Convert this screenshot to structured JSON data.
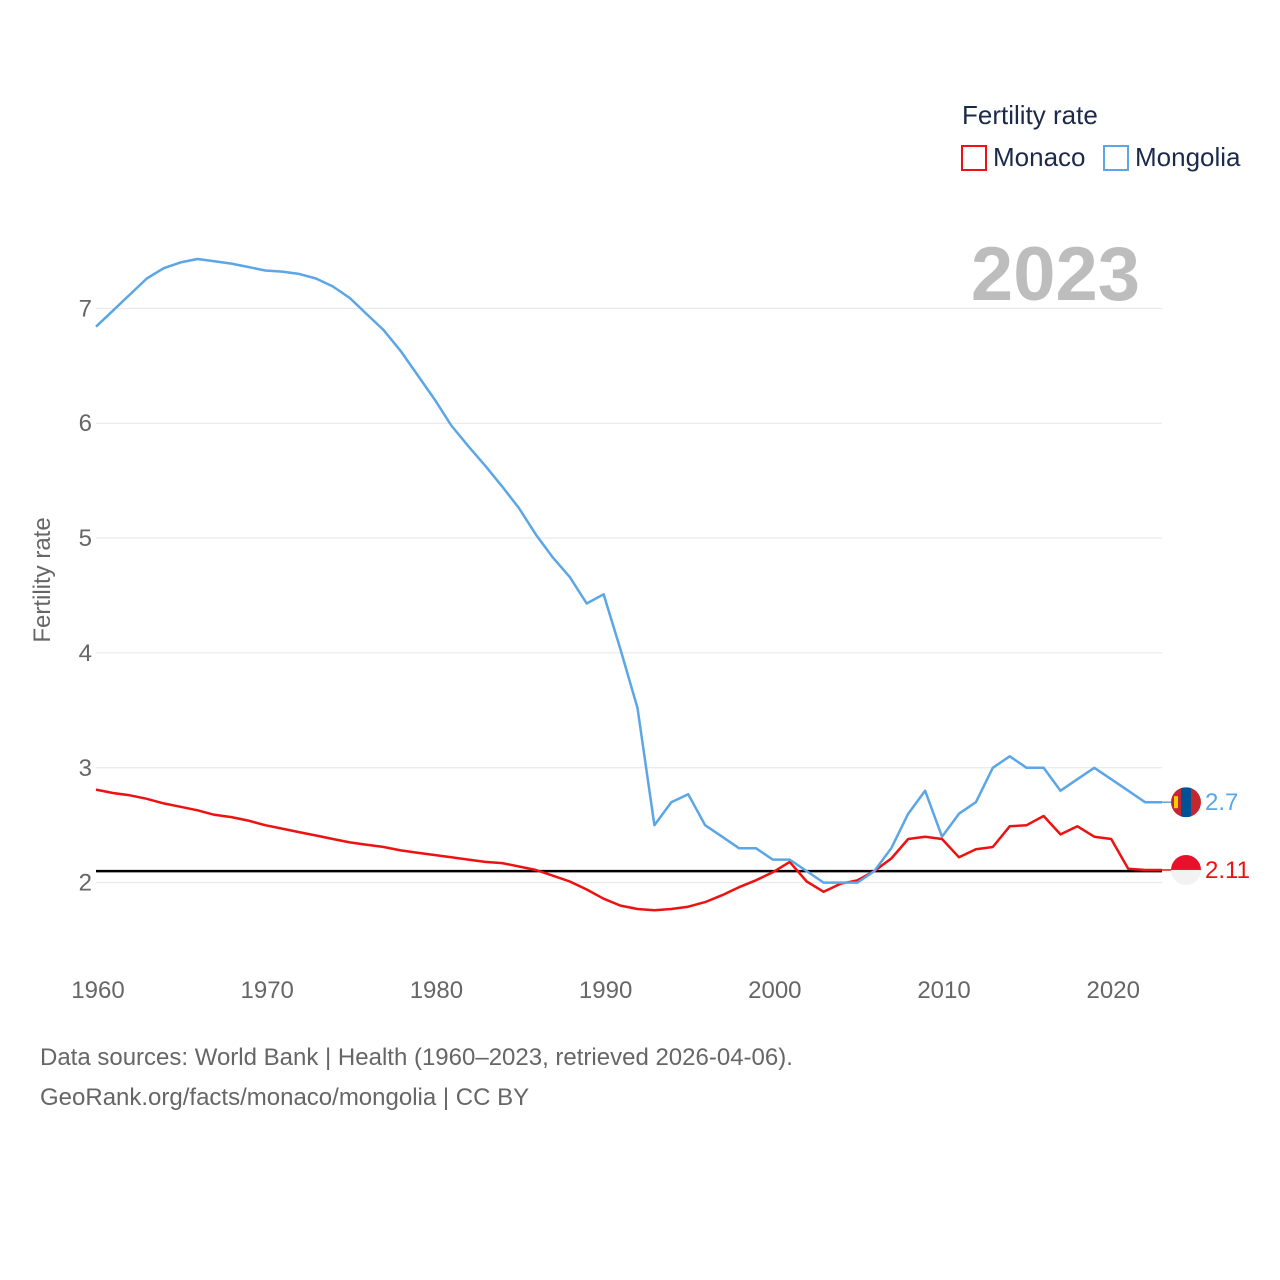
{
  "chart_data": {
    "type": "line",
    "title": "",
    "legend_title": "Fertility rate",
    "legend_position": "top-right",
    "year_display": "2023",
    "xlabel": "",
    "ylabel": "Fertility rate",
    "xlim": [
      1960,
      2023
    ],
    "ylim": [
      1.3,
      7.9
    ],
    "x_ticks": [
      1960,
      1970,
      1980,
      1990,
      2000,
      2010,
      2020
    ],
    "x_tick_labels": [
      "1960",
      "1970",
      "1980",
      "1990",
      "2000",
      "2010",
      "2020"
    ],
    "y_ticks": [
      2,
      3,
      4,
      5,
      6,
      7
    ],
    "y_tick_labels": [
      "2",
      "3",
      "4",
      "5",
      "6",
      "7"
    ],
    "reference_line": 2.1,
    "x": [
      1960,
      1961,
      1962,
      1963,
      1964,
      1965,
      1966,
      1967,
      1968,
      1969,
      1970,
      1971,
      1972,
      1973,
      1974,
      1975,
      1976,
      1977,
      1978,
      1979,
      1980,
      1981,
      1982,
      1983,
      1984,
      1985,
      1986,
      1987,
      1988,
      1989,
      1990,
      1991,
      1992,
      1993,
      1994,
      1995,
      1996,
      1997,
      1998,
      1999,
      2000,
      2001,
      2002,
      2003,
      2004,
      2005,
      2006,
      2007,
      2008,
      2009,
      2010,
      2011,
      2012,
      2013,
      2014,
      2015,
      2016,
      2017,
      2018,
      2019,
      2020,
      2021,
      2022,
      2023
    ],
    "series": [
      {
        "name": "Monaco",
        "color": "#ee1111",
        "end_label": "2.11",
        "values": [
          2.81,
          2.78,
          2.76,
          2.73,
          2.69,
          2.66,
          2.63,
          2.59,
          2.57,
          2.54,
          2.5,
          2.47,
          2.44,
          2.41,
          2.38,
          2.35,
          2.33,
          2.31,
          2.28,
          2.26,
          2.24,
          2.22,
          2.2,
          2.18,
          2.17,
          2.14,
          2.11,
          2.06,
          2.01,
          1.94,
          1.86,
          1.8,
          1.77,
          1.76,
          1.77,
          1.79,
          1.83,
          1.89,
          1.96,
          2.02,
          2.09,
          2.18,
          2.01,
          1.92,
          1.99,
          2.02,
          2.1,
          2.21,
          2.38,
          2.4,
          2.38,
          2.22,
          2.29,
          2.31,
          2.49,
          2.5,
          2.58,
          2.42,
          2.49,
          2.4,
          2.38,
          2.12,
          2.11,
          2.11
        ]
      },
      {
        "name": "Mongolia",
        "color": "#5ba6e6",
        "end_label": "2.7",
        "values": [
          6.84,
          6.98,
          7.12,
          7.26,
          7.35,
          7.4,
          7.43,
          7.41,
          7.39,
          7.36,
          7.33,
          7.32,
          7.3,
          7.26,
          7.19,
          7.09,
          6.95,
          6.81,
          6.63,
          6.42,
          6.21,
          5.98,
          5.8,
          5.63,
          5.45,
          5.26,
          5.03,
          4.83,
          4.66,
          4.43,
          4.51,
          4.03,
          3.52,
          2.5,
          2.7,
          2.77,
          2.5,
          2.4,
          2.3,
          2.3,
          2.2,
          2.2,
          2.1,
          2.0,
          2.0,
          2.0,
          2.1,
          2.3,
          2.6,
          2.8,
          2.4,
          2.6,
          2.7,
          3.0,
          3.1,
          3.0,
          3.0,
          2.8,
          2.9,
          3.0,
          2.9,
          2.8,
          2.7,
          2.7
        ]
      }
    ]
  },
  "source": {
    "line1": "Data sources: World Bank | Health (1960–2023, retrieved 2026-04-06).",
    "line2": "GeoRank.org/facts/monaco/mongolia | CC BY"
  }
}
